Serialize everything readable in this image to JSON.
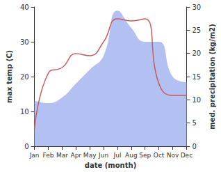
{
  "chart_data": {
    "type": "line",
    "categories": [
      "Jan",
      "Feb",
      "Mar",
      "Apr",
      "May",
      "Jun",
      "Jul",
      "Aug",
      "Sep",
      "Oct",
      "Nov",
      "Dec"
    ],
    "x_label": "date (month)",
    "y_label": "max temp (C)",
    "y2_label": "med. precipitation (kg/m2)",
    "ylim": [
      0,
      40
    ],
    "yticks": [
      0,
      10,
      20,
      30,
      40
    ],
    "y2lim": [
      0,
      30
    ],
    "y2ticks": [
      0,
      5,
      10,
      15,
      20,
      25,
      30
    ],
    "grid": false,
    "series": [
      {
        "type": "area",
        "axis": "y2",
        "color": "#b3c1f2",
        "values": [
          9.8,
          9.3,
          10.5,
          13.5,
          16.5,
          19.5,
          29.2,
          25.5,
          22.5,
          22.5,
          15,
          13.8
        ]
      },
      {
        "type": "line",
        "color": "#c85a5a",
        "values": [
          5,
          21,
          22.6,
          26.6,
          26,
          30,
          36.6,
          36,
          36.6,
          18,
          14.6,
          14.6
        ]
      }
    ]
  }
}
